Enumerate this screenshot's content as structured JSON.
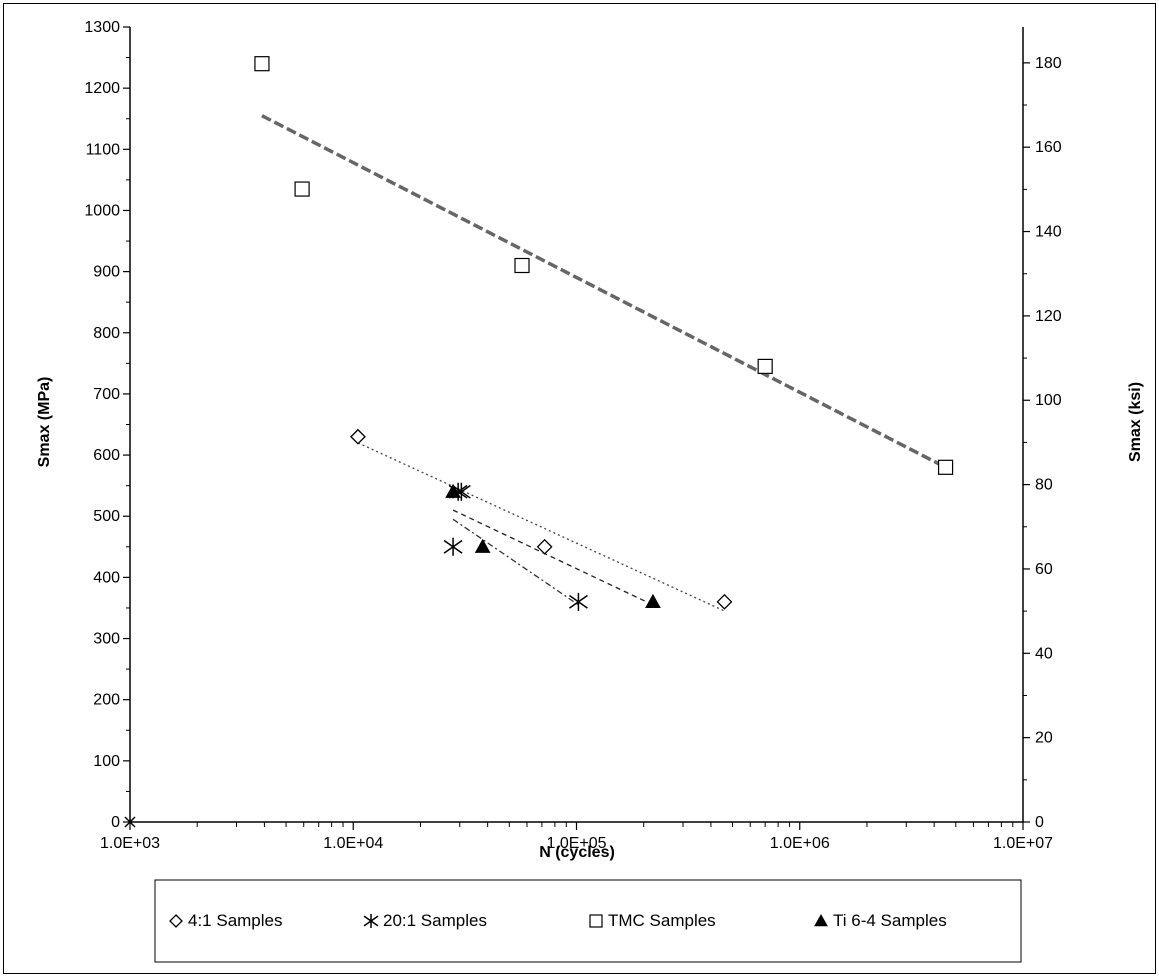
{
  "chart_data": {
    "type": "scatter",
    "title": "",
    "xlabel": "N (cycles)",
    "ylabel": "Smax (MPa)",
    "y2label": "Smax (ksi)",
    "xscale": "log",
    "xlim": [
      1000,
      10000000
    ],
    "ylim": [
      0,
      1300
    ],
    "y2lim": [
      0,
      188.5
    ],
    "x_tick_labels": [
      "1.0E+03",
      "1.0E+04",
      "1.0E+05",
      "1.0E+06",
      "1.0E+07"
    ],
    "x_ticks": [
      1000,
      10000,
      100000,
      1000000,
      10000000
    ],
    "y_ticks": [
      0,
      100,
      200,
      300,
      400,
      500,
      600,
      700,
      800,
      900,
      1000,
      1100,
      1200,
      1300
    ],
    "y_tick_labels": [
      "0",
      "100",
      "200",
      "300",
      "400",
      "500",
      "600",
      "700",
      "800",
      "900",
      "1000",
      "1100",
      "1200",
      "1300"
    ],
    "y2_ticks": [
      0,
      20,
      40,
      60,
      80,
      100,
      120,
      140,
      160,
      180
    ],
    "y2_tick_labels": [
      "0",
      "20",
      "40",
      "60",
      "80",
      "100",
      "120",
      "140",
      "160",
      "180"
    ],
    "grid": false,
    "legend_position": "bottom",
    "series": [
      {
        "name": "4:1 Samples",
        "marker": "diamond",
        "points": [
          [
            10500,
            630
          ],
          [
            72000,
            450
          ],
          [
            460000,
            360
          ]
        ],
        "trend": [
          [
            10500,
            620
          ],
          [
            460000,
            345
          ]
        ],
        "trend_style": "dotted",
        "color": "#444444"
      },
      {
        "name": "20:1 Samples",
        "marker": "asterisk",
        "points": [
          [
            28000,
            450
          ],
          [
            29500,
            540
          ],
          [
            30500,
            540
          ],
          [
            102000,
            360
          ]
        ],
        "trend": [
          [
            28000,
            495
          ],
          [
            102000,
            355
          ]
        ],
        "trend_style": "dash-dot",
        "color": "#333333"
      },
      {
        "name": "TMC Samples",
        "marker": "square",
        "points": [
          [
            3900,
            1240
          ],
          [
            5900,
            1035
          ],
          [
            57000,
            910
          ],
          [
            700000,
            745
          ],
          [
            4500000,
            580
          ]
        ],
        "trend": [
          [
            3900,
            1155
          ],
          [
            4500000,
            580
          ]
        ],
        "trend_style": "dashed",
        "color": "#666666"
      },
      {
        "name": "Ti 6-4 Samples",
        "marker": "triangle",
        "points": [
          [
            28000,
            540
          ],
          [
            38000,
            450
          ],
          [
            220000,
            360
          ]
        ],
        "trend": [
          [
            28000,
            510
          ],
          [
            220000,
            355
          ]
        ],
        "trend_style": "dash",
        "color": "#222222"
      }
    ]
  }
}
